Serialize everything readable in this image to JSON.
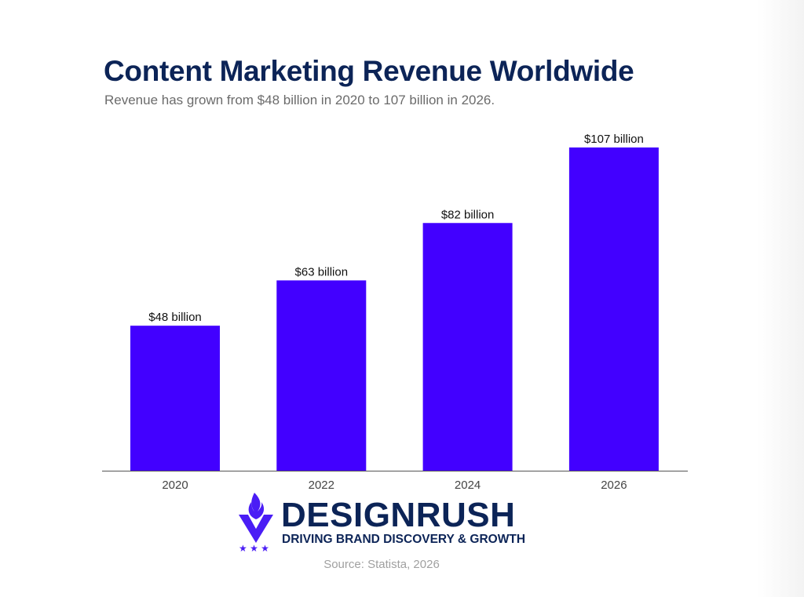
{
  "chart_data": {
    "type": "bar",
    "title": "Content Marketing Revenue Worldwide",
    "subtitle": "Revenue has grown from $48 billion in 2020 to 107 billion in 2026.",
    "categories": [
      "2020",
      "2022",
      "2024",
      "2026"
    ],
    "values": [
      48,
      63,
      82,
      107
    ],
    "data_labels": [
      "$48 billion",
      "$63 billion",
      "$82 billion",
      "$107 billion"
    ],
    "xlabel": "",
    "ylabel": "",
    "ylim": [
      0,
      107
    ],
    "grid": false,
    "bar_color": "#4200ff"
  },
  "branding": {
    "name": "DESIGNRUSH",
    "tagline": "DRIVING BRAND DISCOVERY & GROWTH",
    "logo_icon": "flame-shield-icon",
    "color": "#0c2457",
    "accent": "#4a1df5"
  },
  "source": "Source: Statista, 2026"
}
